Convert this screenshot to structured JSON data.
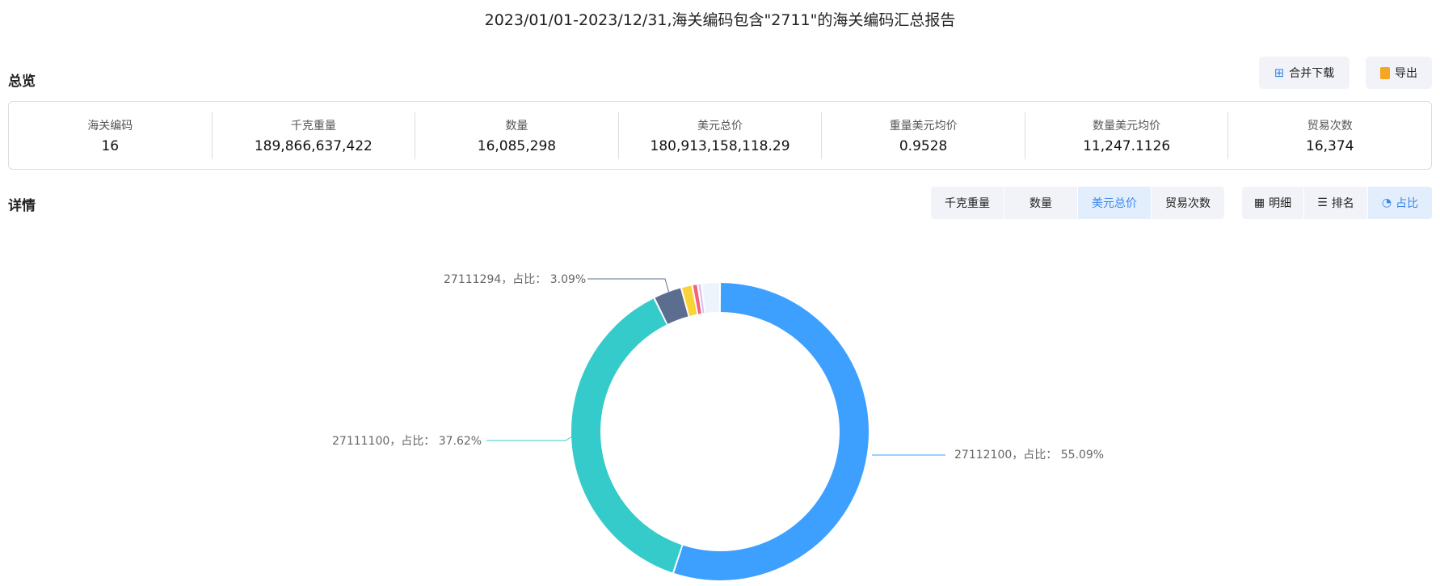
{
  "title": "2023/01/01-2023/12/31,海关编码包含\"2711\"的海关编码汇总报告",
  "overview": {
    "heading": "总览",
    "merge_download": "合并下载",
    "export": "导出",
    "stats": [
      {
        "label": "海关编码",
        "value": "16"
      },
      {
        "label": "千克重量",
        "value": "189,866,637,422"
      },
      {
        "label": "数量",
        "value": "16,085,298"
      },
      {
        "label": "美元总价",
        "value": "180,913,158,118.29"
      },
      {
        "label": "重量美元均价",
        "value": "0.9528"
      },
      {
        "label": "数量美元均价",
        "value": "11,247.1126"
      },
      {
        "label": "贸易次数",
        "value": "16,374"
      }
    ]
  },
  "details": {
    "heading": "详情",
    "metrics": [
      "千克重量",
      "数量",
      "美元总价",
      "贸易次数"
    ],
    "selected_metric": "美元总价",
    "views": [
      "明细",
      "排名",
      "占比"
    ],
    "selected_view": "占比"
  },
  "chart_data": {
    "type": "pie",
    "donut": true,
    "slices": [
      {
        "name": "27112100",
        "percent": 55.09,
        "label": "27112100，占比： 55.09%",
        "color": "#3da0ff"
      },
      {
        "name": "27111100",
        "percent": 37.62,
        "label": "27111100，占比： 37.62%",
        "color": "#36cbcb"
      },
      {
        "name": "27111294",
        "percent": 3.09,
        "label": "27111294，占比： 3.09%",
        "color": "#5b6e8f"
      },
      {
        "percent": 1.2,
        "color": "#fad337"
      },
      {
        "percent": 0.6,
        "color": "#f2637b"
      },
      {
        "percent": 0.4,
        "color": "#d4c4f0"
      },
      {
        "percent": 2.0,
        "color": "#eef4fb"
      }
    ]
  }
}
